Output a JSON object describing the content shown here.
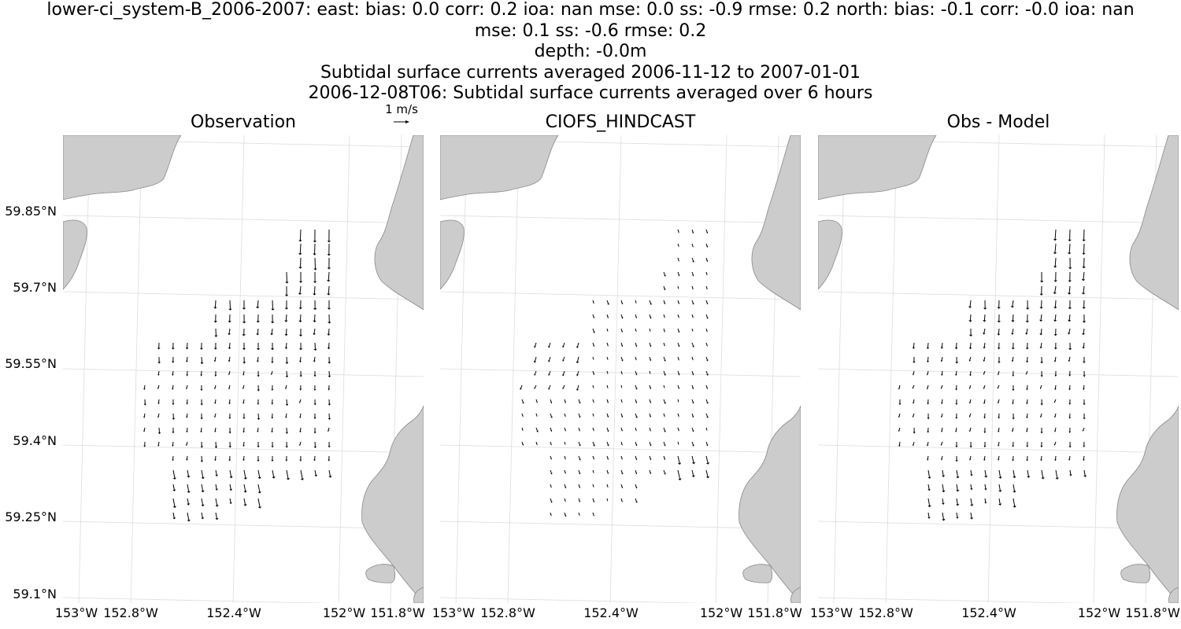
{
  "title_lines": [
    "lower-ci_system-B_2006-2007: east: bias: 0.0  corr: 0.2  ioa: nan  mse: 0.0  ss: -0.9  rmse: 0.2  north: bias: -0.1  corr: -0.0  ioa: nan",
    "mse: 0.1  ss: -0.6  rmse: 0.2",
    "depth: -0.0m",
    "Subtidal surface currents averaged 2006-11-12 to 2007-01-01",
    "2006-12-08T06: Subtidal surface currents averaged over 6 hours"
  ],
  "quiver_key_label": "1 m/s",
  "panels": [
    {
      "title": "Observation",
      "mode": "obs"
    },
    {
      "title": "CIOFS_HINDCAST",
      "mode": "model"
    },
    {
      "title": "Obs - Model",
      "mode": "diff"
    }
  ],
  "lat_ticks": [
    "59.85°N",
    "59.7°N",
    "59.55°N",
    "59.4°N",
    "59.25°N",
    "59.1°N"
  ],
  "lon_ticks": [
    "153°W",
    "152.8°W",
    "152.4°W",
    "152°W",
    "151.8°W"
  ],
  "colors": {
    "land": "#cccccc",
    "coast": "#888888",
    "grid": "#dddddd",
    "arrow": "#000000"
  }
}
